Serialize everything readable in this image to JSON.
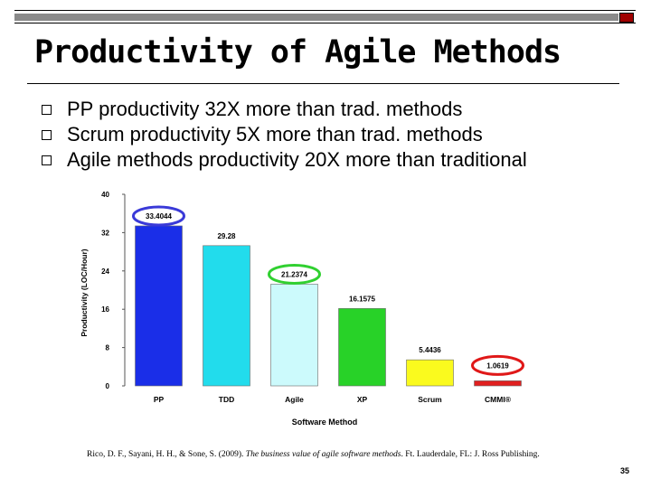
{
  "slide": {
    "title": "Productivity of Agile Methods",
    "bullets": [
      "PP productivity 32X more than trad. methods",
      "Scrum productivity 5X more than trad. methods",
      "Agile methods productivity 20X more than traditional"
    ],
    "citation": {
      "before": "Rico, D. F., Sayani, H. H., & Sone, S. (2009). ",
      "italic": "The business value of agile software methods",
      "after": ". Ft. Lauderdale, FL: J. Ross Publishing."
    },
    "page_number": "35",
    "colors": {
      "top_bar": "#8a8a8a",
      "top_box": "#a00000"
    }
  },
  "chart_data": {
    "type": "bar",
    "categories": [
      "PP",
      "TDD",
      "Agile",
      "XP",
      "Scrum",
      "CMMI®"
    ],
    "values": [
      33.4044,
      29.28,
      21.2374,
      16.1575,
      5.4436,
      1.0619
    ],
    "value_labels": [
      "33.4044",
      "29.28",
      "21.2374",
      "16.1575",
      "5.4436",
      "1.0619"
    ],
    "colors": [
      "#1a2ee8",
      "#22dcec",
      "#ccfafc",
      "#28d228",
      "#fafa1e",
      "#e02020"
    ],
    "highlight_colors": {
      "PP": "#3a3ad8",
      "Agile": "#30d030",
      "CMMI®": "#e01818"
    },
    "xlabel": "Software Method",
    "ylabel": "Productivity (LOC/Hour)",
    "ylim": [
      0,
      40
    ],
    "yticks": [
      0,
      8,
      16,
      24,
      32,
      40
    ],
    "grid": false
  }
}
